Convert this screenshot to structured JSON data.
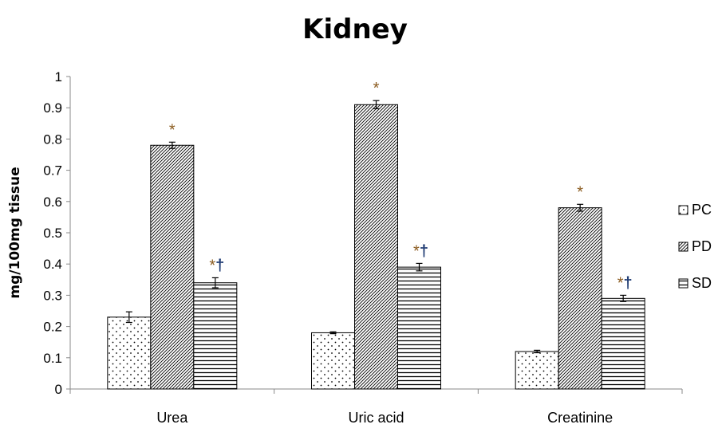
{
  "chart_data": {
    "type": "bar",
    "title": "Kidney",
    "ylabel": "mg/100mg tissue",
    "xlabel": "",
    "ylim": [
      0,
      1
    ],
    "yticks": [
      "0",
      "0.1",
      "0.2",
      "0.3",
      "0.4",
      "0.5",
      "0.6",
      "0.7",
      "0.8",
      "0.9",
      "1"
    ],
    "categories": [
      "Urea",
      "Uric acid",
      "Creatinine"
    ],
    "legend_position": "right",
    "grid": false,
    "series": [
      {
        "name": "PC",
        "pattern": "dots",
        "values": [
          0.23,
          0.18,
          0.12
        ],
        "errors": [
          0.017,
          0.003,
          0.004
        ],
        "annotations": [
          "",
          "",
          ""
        ]
      },
      {
        "name": "PD",
        "pattern": "diagonal",
        "values": [
          0.78,
          0.91,
          0.58
        ],
        "errors": [
          0.01,
          0.013,
          0.011
        ],
        "annotations": [
          "*",
          "*",
          "*"
        ]
      },
      {
        "name": "SD",
        "pattern": "horizontal",
        "values": [
          0.34,
          0.39,
          0.29
        ],
        "errors": [
          0.016,
          0.012,
          0.01
        ],
        "annotations": [
          "*†",
          "*†",
          "*†"
        ]
      }
    ],
    "colors": {
      "bar_fill": "#ffffff",
      "bar_stroke": "#000000",
      "asterisk": "#8a5a1e",
      "dagger": "#1f3b73"
    }
  }
}
